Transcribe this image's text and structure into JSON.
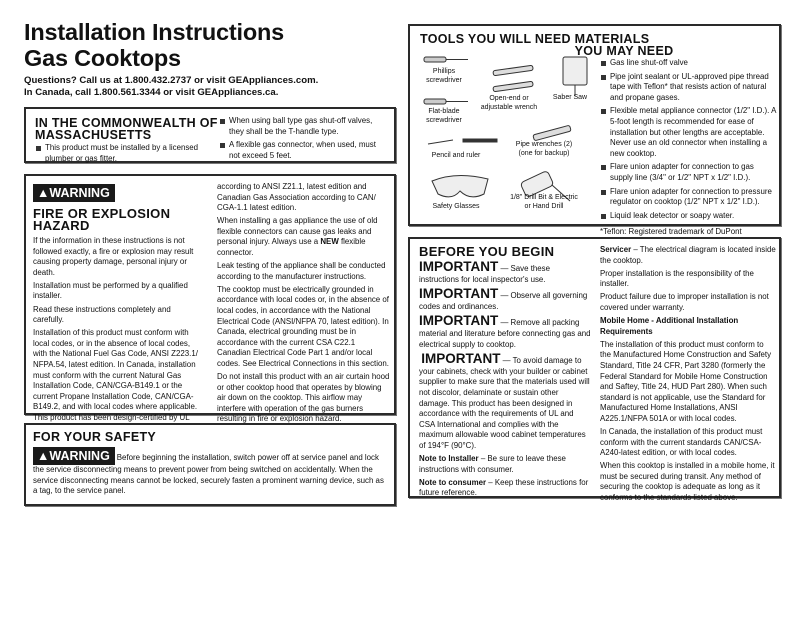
{
  "header": {
    "title_line1": "Installation Instructions",
    "title_line2": "Gas Cooktops",
    "contact_us": "Questions? Call us at 1.800.432.2737 or visit GEAppliances.com.",
    "contact_ca": "In Canada, call 1.800.561.3344 or visit GEAppliances.ca."
  },
  "massachusetts": {
    "title": "IN THE COMMONWEALTH OF MASSACHUSETTS",
    "items": [
      "This product must be installed by a licensed plumber or gas fitter.",
      "When using ball type gas shut-off valves, they shall be the T-handle type.",
      "A flexible gas connector, when used, must not exceed 5 feet."
    ]
  },
  "warning": {
    "badge": "WARNING",
    "title": "FIRE OR EXPLOSION HAZARD",
    "col1": [
      "If the information in these instructions is not followed exactly, a fire or explosion may result causing property damage, personal injury or death.",
      "Installation must be performed by a qualified installer.",
      "Read these instructions completely and carefully.",
      "Installation of this product must conform with local codes, or in the absence of local codes, with the National Fuel Gas Code, ANSI Z223.1/ NFPA.54, latest edition. In Canada, installation must conform with the current Natural Gas Installation Code, CAN/CGA-B149.1 or the current Propane Installation Code, CAN/CGA-B149.2, and with local codes where applicable. This product has been design-certified by UL"
    ],
    "col2_p1": "according to ANSI Z21.1, latest edition and Canadian Gas Association according to CAN/ CGA-1.1 latest edition.",
    "col2_p2_pre": "When installing a gas appliance the use of old flexible connectors can cause gas leaks and personal injury. Always use a ",
    "col2_p2_bold": "NEW",
    "col2_p2_post": " flexible connector.",
    "col2_rest": [
      "Leak testing of the appliance shall be conducted according to the manufacturer instructions.",
      "The cooktop must be electrically grounded in accordance with local codes or, in the absence of local codes, in accordance with the National Electrical Code (ANSI/NFPA 70, latest edition). In Canada, electrical grounding must be in accordance with the current CSA C22.1 Canadian Electrical Code Part 1 and/or local codes. See Electrical Connections in this section.",
      "Do not install this product with an air curtain hood or other cooktop hood that operates by blowing air down on the cooktop. This airflow may interfere with operation of the gas burners resulting in fire or explosion hazard."
    ]
  },
  "safety": {
    "title": "FOR YOUR SAFETY",
    "badge": "WARNING",
    "text": "Before beginning the installation, switch power off at service panel and lock the service disconnecting means to prevent power from being switched on accidentally. When the service disconnecting means cannot be locked, securely fasten a prominent warning device, such as a tag, to the service panel."
  },
  "tools": {
    "title": "TOOLS YOU WILL NEED",
    "labels": [
      "Phillips screwdriver",
      "Flat-blade screwdriver",
      "Open-end or adjustable wrench",
      "Saber Saw",
      "Pencil and ruler",
      "Pipe wrenches (2) (one for backup)",
      "Safety Glasses",
      "1/8\" Drill Bit & Electric or Hand Drill"
    ]
  },
  "materials": {
    "title": "MATERIALS YOU MAY NEED",
    "items": [
      "Gas line shut-off valve",
      "Pipe joint sealant or UL-approved pipe thread tape with Teflon* that resists action of natural and propane gases.",
      "Flexible metal appliance connector (1/2\" I.D.). A 5-foot length is recommended for ease of installation but other lengths are acceptable. Never use an old connector when installing a new cooktop.",
      "Flare union adapter for connection to gas supply line (3/4\" or 1/2\" NPT x 1/2\" I.D.).",
      "Flare union adapter for connection to pressure regulator on cooktop (1/2\" NPT x 1/2\" I.D.).",
      "Liquid leak detector or soapy water."
    ],
    "footnote": "*Teflon: Registered trademark of DuPont"
  },
  "before": {
    "title": "BEFORE YOU BEGIN",
    "important": "IMPORTANT",
    "imp_items": [
      "— Save these instructions for local inspector's use.",
      "— Observe all governing codes and ordinances.",
      "— Remove all packing material and literature before connecting gas and electrical supply to cooktop.",
      "— To avoid damage to your cabinets, check with your builder or cabinet supplier to make sure that the materials used will not discolor, delaminate or sustain other damage. This product has been designed in accordance with the requirements of UL and CSA International and complies with the maximum allowable wood cabinet temperatures of 194°F (90°C)."
    ],
    "note_installer_label": "Note to Installer",
    "note_installer": " – Be sure to leave these instructions with consumer.",
    "note_consumer_label": "Note to consumer",
    "note_consumer": " – Keep these instructions for future reference.",
    "servicer_label": "Servicer",
    "servicer": " – The electrical diagram is located inside the cooktop.",
    "p_install": "Proper installation is the responsibility of the installer.",
    "p_failure": "Product failure due to improper installation is not covered under warranty.",
    "mobile_title": "Mobile Home - Additional Installation Requirements",
    "mobile": [
      "The installation of this product must conform to the Manufactured Home Construction and Safety Standard, Title 24 CFR, Part 3280 (formerly the Federal Standard for Mobile Home Construction and Saftey, Title 24, HUD Part 280). When such standard is not applicable, use the Standard for Manufactured Home Installations, ANSI A225.1/NFPA 501A or with local codes.",
      "In Canada, the installation of this product must conform with the current standards CAN/CSA-A240-latest edition, or with local codes.",
      "When this cooktop is installed in a mobile home, it must be secured during transit. Any method of securing the cooktop is adequate as long as it conforms to the standards listed above."
    ]
  }
}
